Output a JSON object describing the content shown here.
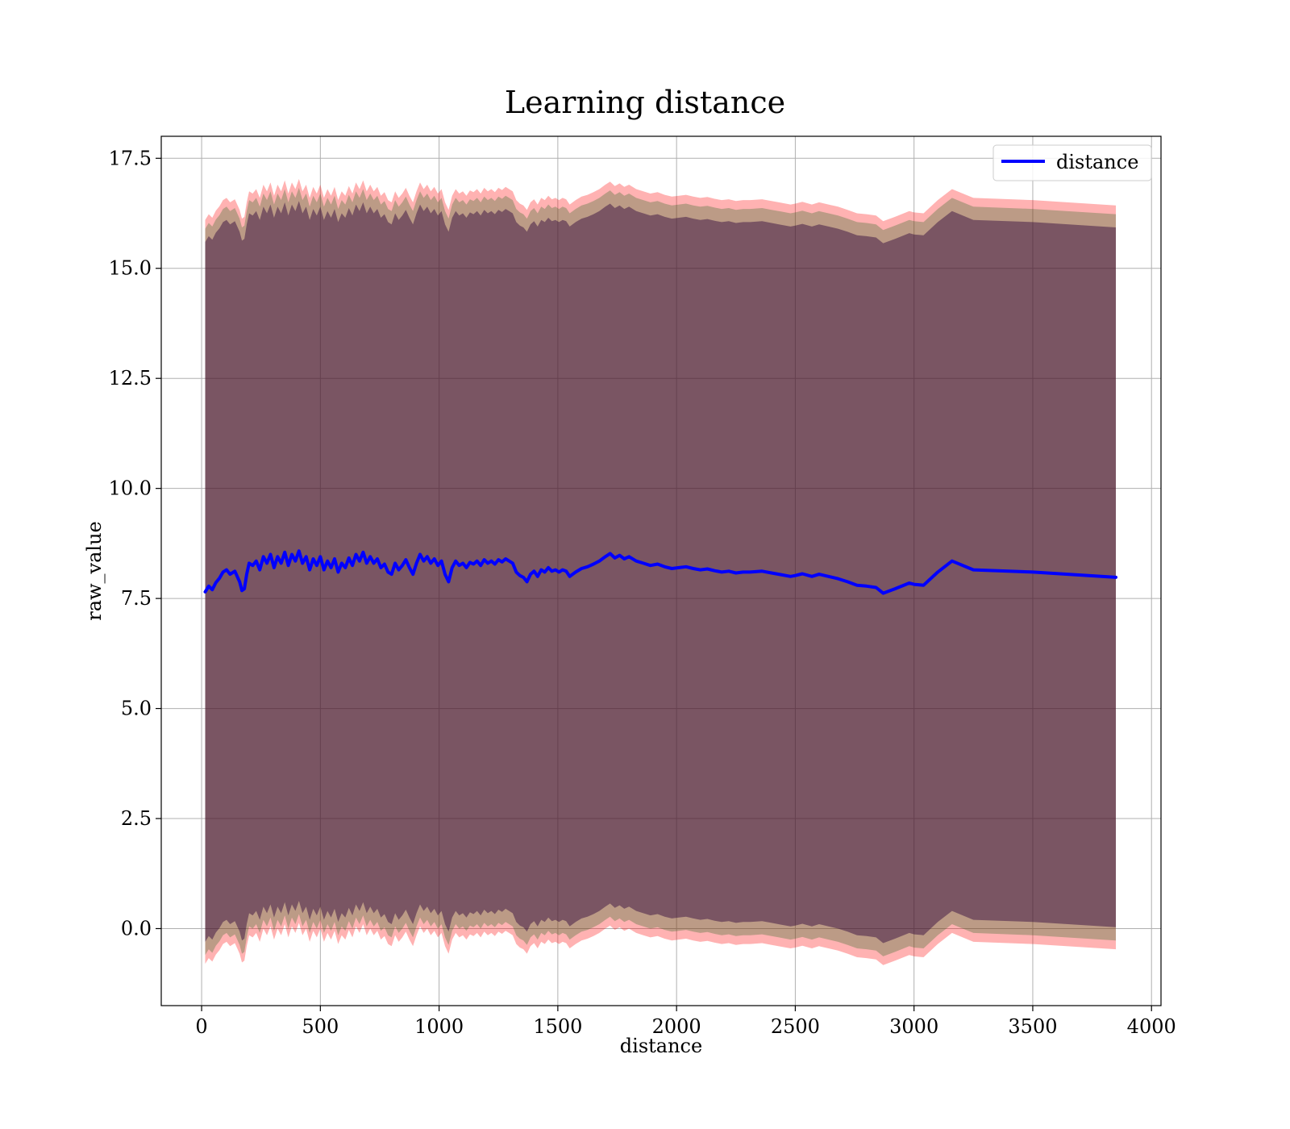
{
  "colors": {
    "line": "#0000ff",
    "band_outer": "#ff0000",
    "band_inner": "#226622",
    "band_core": "#2a003a",
    "grid": "#b0b0b0",
    "axes": "#000000"
  },
  "chart_data": {
    "type": "line",
    "title": "Learning distance",
    "xlabel": "distance",
    "ylabel": "raw_value",
    "xlim": [
      -170,
      4040
    ],
    "ylim": [
      -1.75,
      18.0
    ],
    "xticks": [
      0,
      500,
      1000,
      1500,
      2000,
      2500,
      3000,
      3500,
      4000
    ],
    "xtick_labels": [
      "0",
      "500",
      "1000",
      "1500",
      "2000",
      "2500",
      "3000",
      "3500",
      "4000"
    ],
    "yticks": [
      0.0,
      2.5,
      5.0,
      7.5,
      10.0,
      12.5,
      15.0,
      17.5
    ],
    "ytick_labels": [
      "0.0",
      "2.5",
      "5.0",
      "7.5",
      "10.0",
      "12.5",
      "15.0",
      "17.5"
    ],
    "grid": true,
    "legend": {
      "position": "top-right",
      "entries": [
        "distance"
      ]
    },
    "series": [
      {
        "name": "distance",
        "x": [
          15,
          30,
          45,
          60,
          75,
          90,
          105,
          120,
          140,
          160,
          170,
          180,
          190,
          200,
          215,
          230,
          245,
          260,
          275,
          290,
          305,
          320,
          335,
          350,
          365,
          380,
          395,
          410,
          425,
          440,
          455,
          470,
          485,
          500,
          515,
          530,
          545,
          560,
          575,
          590,
          605,
          620,
          635,
          650,
          665,
          680,
          695,
          710,
          725,
          740,
          755,
          770,
          785,
          800,
          815,
          830,
          845,
          860,
          875,
          890,
          905,
          920,
          935,
          950,
          965,
          980,
          995,
          1010,
          1025,
          1040,
          1055,
          1070,
          1085,
          1100,
          1115,
          1130,
          1145,
          1160,
          1175,
          1190,
          1205,
          1220,
          1235,
          1250,
          1265,
          1280,
          1295,
          1310,
          1325,
          1340,
          1355,
          1370,
          1385,
          1400,
          1415,
          1430,
          1445,
          1460,
          1475,
          1490,
          1505,
          1520,
          1535,
          1550,
          1575,
          1600,
          1625,
          1650,
          1675,
          1700,
          1720,
          1740,
          1760,
          1780,
          1800,
          1830,
          1860,
          1890,
          1920,
          1950,
          1980,
          2010,
          2040,
          2070,
          2100,
          2130,
          2160,
          2190,
          2220,
          2250,
          2280,
          2310,
          2360,
          2400,
          2440,
          2480,
          2500,
          2530,
          2570,
          2600,
          2640,
          2680,
          2720,
          2760,
          2800,
          2840,
          2870,
          2920,
          2980,
          3000,
          3040,
          3100,
          3160,
          3250,
          3500,
          3850
        ],
        "y": [
          7.65,
          7.78,
          7.7,
          7.86,
          7.96,
          8.1,
          8.15,
          8.05,
          8.12,
          7.88,
          7.68,
          7.72,
          8.05,
          8.3,
          8.25,
          8.35,
          8.15,
          8.45,
          8.3,
          8.5,
          8.2,
          8.45,
          8.3,
          8.55,
          8.25,
          8.5,
          8.35,
          8.58,
          8.3,
          8.45,
          8.15,
          8.4,
          8.25,
          8.45,
          8.15,
          8.35,
          8.2,
          8.4,
          8.1,
          8.3,
          8.2,
          8.42,
          8.25,
          8.5,
          8.35,
          8.55,
          8.3,
          8.45,
          8.3,
          8.4,
          8.2,
          8.28,
          8.1,
          8.05,
          8.3,
          8.15,
          8.25,
          8.38,
          8.2,
          8.05,
          8.3,
          8.5,
          8.35,
          8.45,
          8.3,
          8.4,
          8.25,
          8.35,
          8.05,
          7.88,
          8.2,
          8.35,
          8.25,
          8.3,
          8.2,
          8.32,
          8.28,
          8.35,
          8.25,
          8.38,
          8.3,
          8.35,
          8.28,
          8.38,
          8.33,
          8.4,
          8.35,
          8.3,
          8.1,
          8.02,
          7.98,
          7.88,
          8.05,
          8.12,
          8.0,
          8.15,
          8.1,
          8.2,
          8.12,
          8.15,
          8.1,
          8.15,
          8.12,
          8.0,
          8.1,
          8.18,
          8.22,
          8.28,
          8.35,
          8.45,
          8.52,
          8.42,
          8.48,
          8.4,
          8.45,
          8.35,
          8.3,
          8.25,
          8.28,
          8.22,
          8.18,
          8.2,
          8.22,
          8.18,
          8.15,
          8.17,
          8.13,
          8.1,
          8.12,
          8.08,
          8.1,
          8.1,
          8.12,
          8.08,
          8.04,
          8.0,
          8.02,
          8.06,
          8.0,
          8.05,
          8.0,
          7.95,
          7.88,
          7.8,
          7.78,
          7.75,
          7.62,
          7.72,
          7.85,
          7.82,
          7.8,
          8.1,
          8.35,
          8.15,
          8.1,
          7.98
        ]
      }
    ],
    "bands": [
      {
        "layer": "outer",
        "lower_offset": -8.45,
        "upper_offset": 8.45
      },
      {
        "layer": "middle",
        "lower_offset": -8.25,
        "upper_offset": 8.25
      },
      {
        "layer": "inner",
        "lower_offset": -7.95,
        "upper_offset": 7.95
      }
    ]
  }
}
